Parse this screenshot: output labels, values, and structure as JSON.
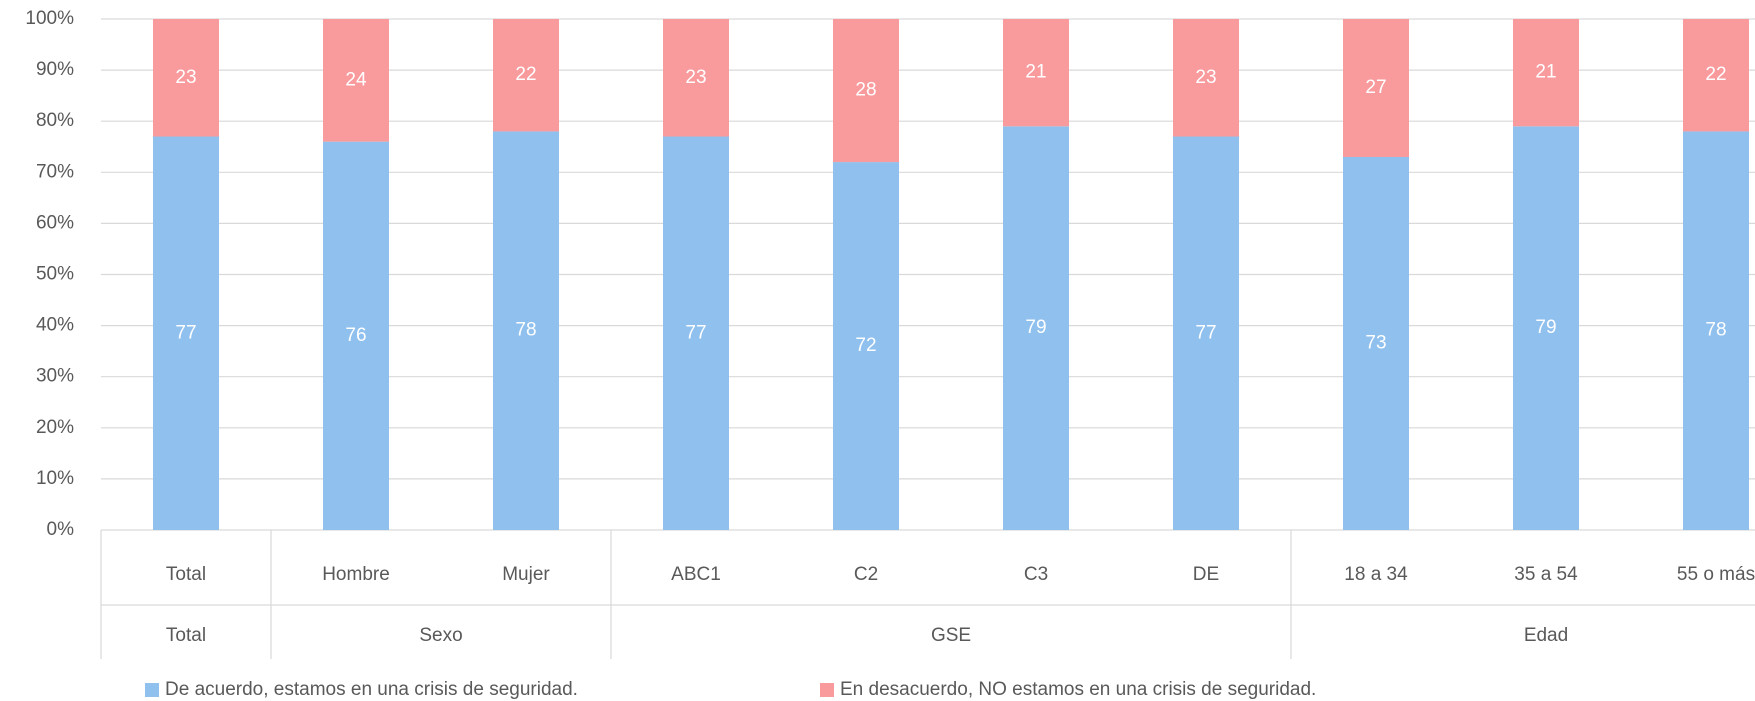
{
  "chart_data": {
    "type": "stacked_bar",
    "categories": [
      "Total",
      "Hombre",
      "Mujer",
      "ABC1",
      "C2",
      "C3",
      "DE",
      "18 a 34",
      "35 a 54",
      "55 o más"
    ],
    "category_groups": [
      "Total",
      "Sexo",
      "Sexo",
      "GSE",
      "GSE",
      "GSE",
      "GSE",
      "Edad",
      "Edad",
      "Edad"
    ],
    "series": [
      {
        "name": "De acuerdo, estamos en una crisis de seguridad.",
        "color": "#8fc0ee",
        "values": [
          77,
          76,
          78,
          77,
          72,
          79,
          77,
          73,
          79,
          78
        ]
      },
      {
        "name": "En desacuerdo, NO estamos en una crisis de seguridad.",
        "color": "#f99a9d",
        "values": [
          23,
          24,
          22,
          23,
          28,
          21,
          23,
          27,
          21,
          22
        ]
      }
    ],
    "ylim": [
      0,
      100
    ],
    "yticks": [
      {
        "value": 0,
        "label": "0%"
      },
      {
        "value": 10,
        "label": "10%"
      },
      {
        "value": 20,
        "label": "20%"
      },
      {
        "value": 30,
        "label": "30%"
      },
      {
        "value": 40,
        "label": "40%"
      },
      {
        "value": 50,
        "label": "50%"
      },
      {
        "value": 60,
        "label": "60%"
      },
      {
        "value": 70,
        "label": "70%"
      },
      {
        "value": 80,
        "label": "80%"
      },
      {
        "value": 90,
        "label": "90%"
      },
      {
        "value": 100,
        "label": "100%"
      }
    ],
    "grid": true,
    "legend": "bottom"
  }
}
